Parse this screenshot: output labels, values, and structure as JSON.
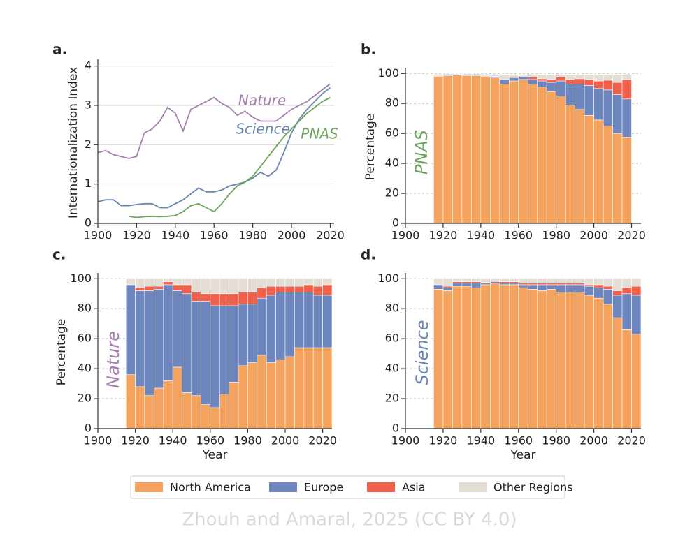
{
  "chart_data": [
    {
      "type": "line",
      "panel": "a.",
      "ylabel": "Internationalization Index",
      "x": [
        1900,
        1904,
        1908,
        1912,
        1916,
        1920,
        1924,
        1928,
        1932,
        1936,
        1940,
        1944,
        1948,
        1952,
        1956,
        1960,
        1964,
        1968,
        1972,
        1976,
        1980,
        1984,
        1988,
        1992,
        1996,
        2000,
        2004,
        2008,
        2012,
        2016,
        2020
      ],
      "series": [
        {
          "name": "Nature",
          "color": "#a67db0",
          "values": [
            1.8,
            1.85,
            1.75,
            1.7,
            1.65,
            1.7,
            2.3,
            2.4,
            2.6,
            2.95,
            2.8,
            2.35,
            2.9,
            3.0,
            3.1,
            3.2,
            3.05,
            2.95,
            2.75,
            2.85,
            2.7,
            2.6,
            2.6,
            2.6,
            2.75,
            2.9,
            3.0,
            3.1,
            3.25,
            3.4,
            3.55
          ]
        },
        {
          "name": "Science",
          "color": "#6a86b5",
          "values": [
            0.55,
            0.6,
            0.6,
            0.45,
            0.45,
            0.48,
            0.5,
            0.5,
            0.4,
            0.4,
            0.5,
            0.6,
            0.75,
            0.9,
            0.8,
            0.8,
            0.85,
            0.95,
            1.0,
            1.05,
            1.15,
            1.3,
            1.2,
            1.35,
            1.8,
            2.3,
            2.65,
            2.9,
            3.1,
            3.3,
            3.45
          ]
        },
        {
          "name": "PNAS",
          "color": "#6aa55a",
          "values": [
            null,
            null,
            null,
            null,
            0.18,
            0.15,
            0.17,
            0.18,
            0.17,
            0.18,
            0.2,
            0.3,
            0.45,
            0.5,
            0.4,
            0.3,
            0.5,
            0.75,
            0.95,
            1.05,
            1.2,
            1.45,
            1.7,
            1.95,
            2.2,
            2.4,
            2.6,
            2.8,
            2.95,
            3.1,
            3.2
          ]
        }
      ],
      "xlim": [
        1900,
        2022
      ],
      "xticks": [
        1900,
        1920,
        1940,
        1960,
        1980,
        2000,
        2020
      ],
      "ylim": [
        0,
        4.1
      ],
      "yticks": [
        0,
        1,
        2,
        3,
        4
      ],
      "grid": true,
      "grid_style": "solid"
    },
    {
      "type": "stacked_bar",
      "panel": "b.",
      "ylabel": "Percentage",
      "annotation": "PNAS",
      "annotation_color": "#6aa55a",
      "x": [
        1915,
        1920,
        1925,
        1930,
        1935,
        1940,
        1945,
        1950,
        1955,
        1960,
        1965,
        1970,
        1975,
        1980,
        1985,
        1990,
        1995,
        2000,
        2005,
        2010,
        2015
      ],
      "series": [
        {
          "name": "North America",
          "color": "#f4a35e",
          "values": [
            98,
            98.5,
            99,
            98.5,
            98.5,
            98,
            97,
            93,
            95,
            96,
            93,
            91,
            88,
            85,
            79,
            76,
            72,
            69,
            65,
            60,
            57.5
          ]
        },
        {
          "name": "Europe",
          "color": "#6d87be",
          "values": [
            0.5,
            0.5,
            0.3,
            0.5,
            0.5,
            0.5,
            1,
            3,
            2,
            2,
            3,
            4,
            6,
            10,
            14,
            17,
            20,
            21,
            24,
            26,
            25.5
          ]
        },
        {
          "name": "Asia",
          "color": "#f0604a",
          "values": [
            0,
            0,
            0,
            0,
            0,
            0,
            0,
            0,
            0.5,
            0.5,
            1.5,
            1.5,
            2,
            2.5,
            3,
            3.5,
            4,
            5,
            6.5,
            8,
            13
          ]
        },
        {
          "name": "Other Regions",
          "color": "#e3ddd3",
          "values": [
            1,
            0.8,
            0.5,
            0.8,
            0.8,
            1,
            1.5,
            3,
            2,
            1,
            2,
            2.5,
            3,
            2,
            3,
            2.5,
            3,
            4,
            3.5,
            5,
            3.5
          ]
        }
      ],
      "xlim": [
        1900,
        2025
      ],
      "xticks": [
        1900,
        1920,
        1940,
        1960,
        1980,
        2000,
        2020
      ],
      "ylim": [
        0,
        102
      ],
      "yticks": [
        0,
        20,
        40,
        60,
        80,
        100
      ],
      "grid": true,
      "grid_style": "dashed"
    },
    {
      "type": "stacked_bar",
      "panel": "c.",
      "ylabel": "Percentage",
      "xlabel": "Year",
      "annotation": "Nature",
      "annotation_color": "#a67db0",
      "x": [
        1915,
        1920,
        1925,
        1930,
        1935,
        1940,
        1945,
        1950,
        1955,
        1960,
        1965,
        1970,
        1975,
        1980,
        1985,
        1990,
        1995,
        2000,
        2005,
        2010,
        2015,
        2020
      ],
      "series": [
        {
          "name": "North America",
          "color": "#f4a35e",
          "values": [
            36,
            28,
            22,
            27,
            32,
            41,
            24,
            22,
            16,
            14,
            23,
            31,
            42,
            44,
            49,
            44,
            46,
            48,
            54,
            54,
            54,
            54
          ]
        },
        {
          "name": "Europe",
          "color": "#6d87be",
          "values": [
            60,
            64,
            70,
            66,
            64,
            51,
            66,
            63,
            69,
            68,
            59,
            51,
            41,
            39,
            38,
            45,
            45,
            43,
            37,
            37,
            35,
            35
          ]
        },
        {
          "name": "Asia",
          "color": "#f0604a",
          "values": [
            0,
            2,
            3,
            2,
            2,
            4,
            6,
            6,
            5,
            8,
            8,
            8,
            8,
            8,
            7,
            6,
            4,
            4,
            4,
            5,
            6,
            7
          ]
        },
        {
          "name": "Other Regions",
          "color": "#e3ddd3",
          "values": [
            4,
            6,
            5,
            5,
            2,
            4,
            4,
            9,
            10,
            10,
            10,
            10,
            9,
            9,
            6,
            5,
            5,
            5,
            5,
            4,
            5,
            4
          ]
        }
      ],
      "xlim": [
        1900,
        2025
      ],
      "xticks": [
        1900,
        1920,
        1940,
        1960,
        1980,
        2000,
        2020
      ],
      "ylim": [
        0,
        102
      ],
      "yticks": [
        0,
        20,
        40,
        60,
        80,
        100
      ],
      "grid": true,
      "grid_style": "dashed"
    },
    {
      "type": "stacked_bar",
      "panel": "d.",
      "xlabel": "Year",
      "annotation": "Science",
      "annotation_color": "#6a86b5",
      "x": [
        1915,
        1920,
        1925,
        1930,
        1935,
        1940,
        1945,
        1950,
        1955,
        1960,
        1965,
        1970,
        1975,
        1980,
        1985,
        1990,
        1995,
        2000,
        2005,
        2010,
        2015,
        2020
      ],
      "series": [
        {
          "name": "North America",
          "color": "#f4a35e",
          "values": [
            93,
            92,
            95,
            95,
            94,
            96,
            97,
            96,
            96,
            94,
            93,
            92,
            93,
            91,
            91,
            91,
            89,
            87,
            83,
            74,
            66,
            63
          ]
        },
        {
          "name": "Europe",
          "color": "#6d87be",
          "values": [
            3,
            2,
            2,
            2,
            3,
            1,
            1,
            1,
            1,
            2,
            3,
            4,
            3,
            5,
            5,
            5,
            6,
            7,
            10,
            15,
            24,
            26
          ]
        },
        {
          "name": "Asia",
          "color": "#f0604a",
          "values": [
            0,
            1,
            1,
            1,
            1,
            0.5,
            0.5,
            1,
            1,
            1,
            1,
            1,
            1,
            1,
            1,
            1,
            1,
            2,
            2,
            3,
            4,
            6
          ]
        },
        {
          "name": "Other Regions",
          "color": "#e3ddd3",
          "values": [
            4,
            5,
            2,
            2,
            2,
            2.5,
            1.5,
            2,
            2,
            3,
            3,
            3,
            3,
            3,
            3,
            3,
            4,
            4,
            5,
            8,
            6,
            5
          ]
        }
      ],
      "xlim": [
        1900,
        2025
      ],
      "xticks": [
        1900,
        1920,
        1940,
        1960,
        1980,
        2000,
        2020
      ],
      "ylim": [
        0,
        102
      ],
      "yticks": [
        0,
        20,
        40,
        60,
        80,
        100
      ],
      "grid": true,
      "grid_style": "dashed"
    }
  ],
  "credit": "Zhouh and Amaral, 2025 (CC BY 4.0)"
}
